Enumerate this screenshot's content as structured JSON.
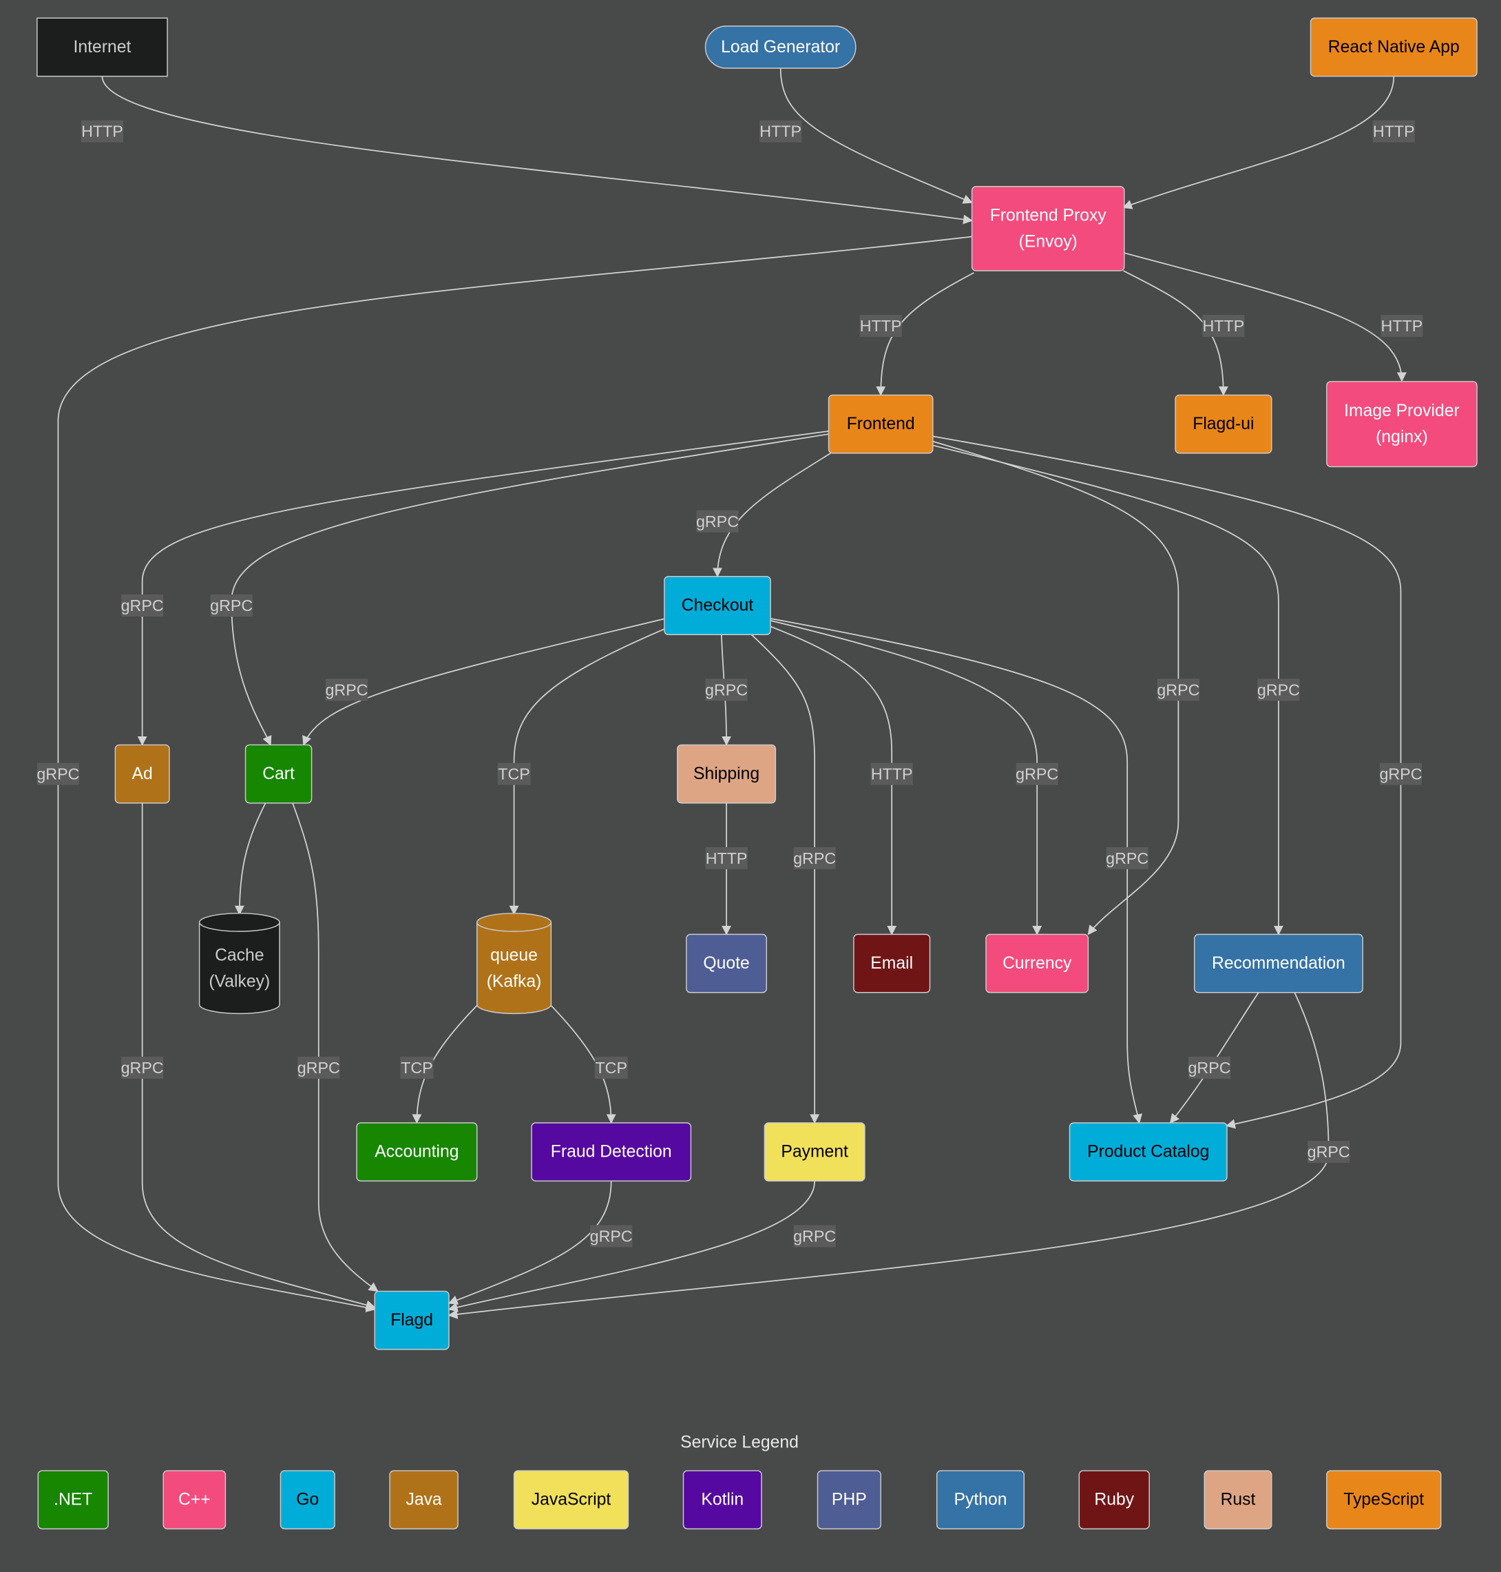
{
  "nodes": [
    {
      "id": "internet",
      "label": [
        "Internet"
      ],
      "fill": "#1c1e1e",
      "text": "#cccccc",
      "shape": "rect"
    },
    {
      "id": "loadgen",
      "label": [
        "Load Generator"
      ],
      "fill": "#3572a5",
      "text": "#ffffff",
      "shape": "stadium"
    },
    {
      "id": "rnapp",
      "label": [
        "React Native App"
      ],
      "fill": "#e8861a",
      "text": "#000000",
      "shape": "rounded"
    },
    {
      "id": "proxy",
      "label": [
        "Frontend Proxy",
        "(Envoy)"
      ],
      "fill": "#f34b7d",
      "text": "#ffffff",
      "shape": "rounded"
    },
    {
      "id": "frontend",
      "label": [
        "Frontend"
      ],
      "fill": "#e8861a",
      "text": "#000000",
      "shape": "rounded"
    },
    {
      "id": "flagdui",
      "label": [
        "Flagd-ui"
      ],
      "fill": "#e8861a",
      "text": "#000000",
      "shape": "rounded"
    },
    {
      "id": "image",
      "label": [
        "Image Provider",
        "(nginx)"
      ],
      "fill": "#f34b7d",
      "text": "#ffffff",
      "shape": "rounded"
    },
    {
      "id": "checkout",
      "label": [
        "Checkout"
      ],
      "fill": "#00add8",
      "text": "#000000",
      "shape": "rounded"
    },
    {
      "id": "ad",
      "label": [
        "Ad"
      ],
      "fill": "#b07219",
      "text": "#ffffff",
      "shape": "rounded"
    },
    {
      "id": "cart",
      "label": [
        "Cart"
      ],
      "fill": "#178600",
      "text": "#ffffff",
      "shape": "rounded"
    },
    {
      "id": "shipping",
      "label": [
        "Shipping"
      ],
      "fill": "#dea584",
      "text": "#000000",
      "shape": "rounded"
    },
    {
      "id": "cache",
      "label": [
        "Cache",
        "(Valkey)"
      ],
      "fill": "#1c1e1e",
      "text": "#cccccc",
      "shape": "cylinder"
    },
    {
      "id": "queue",
      "label": [
        "queue",
        "(Kafka)"
      ],
      "fill": "#b07219",
      "text": "#ffffff",
      "shape": "cylinder"
    },
    {
      "id": "quote",
      "label": [
        "Quote"
      ],
      "fill": "#4f5d95",
      "text": "#ffffff",
      "shape": "rounded"
    },
    {
      "id": "email",
      "label": [
        "Email"
      ],
      "fill": "#701516",
      "text": "#ffffff",
      "shape": "rounded"
    },
    {
      "id": "currency",
      "label": [
        "Currency"
      ],
      "fill": "#f34b7d",
      "text": "#ffffff",
      "shape": "rounded"
    },
    {
      "id": "recommendation",
      "label": [
        "Recommendation"
      ],
      "fill": "#3572a5",
      "text": "#ffffff",
      "shape": "rounded"
    },
    {
      "id": "accounting",
      "label": [
        "Accounting"
      ],
      "fill": "#178600",
      "text": "#ffffff",
      "shape": "rounded"
    },
    {
      "id": "fraud",
      "label": [
        "Fraud Detection"
      ],
      "fill": "#5509a0",
      "text": "#ffffff",
      "shape": "rounded"
    },
    {
      "id": "payment",
      "label": [
        "Payment"
      ],
      "fill": "#f1e05a",
      "text": "#000000",
      "shape": "rounded"
    },
    {
      "id": "productcatalog",
      "label": [
        "Product Catalog"
      ],
      "fill": "#00add8",
      "text": "#000000",
      "shape": "rounded"
    },
    {
      "id": "flagd",
      "label": [
        "Flagd"
      ],
      "fill": "#00add8",
      "text": "#000000",
      "shape": "rounded"
    }
  ],
  "edges": [
    {
      "from": "internet",
      "to": "proxy",
      "label": "HTTP"
    },
    {
      "from": "loadgen",
      "to": "proxy",
      "label": "HTTP"
    },
    {
      "from": "rnapp",
      "to": "proxy",
      "label": "HTTP"
    },
    {
      "from": "proxy",
      "to": "flagd",
      "label": "gRPC"
    },
    {
      "from": "proxy",
      "to": "frontend",
      "label": "HTTP"
    },
    {
      "from": "proxy",
      "to": "flagdui",
      "label": "HTTP"
    },
    {
      "from": "proxy",
      "to": "image",
      "label": "HTTP"
    },
    {
      "from": "frontend",
      "to": "ad",
      "label": "gRPC"
    },
    {
      "from": "frontend",
      "to": "cart",
      "label": "gRPC"
    },
    {
      "from": "frontend",
      "to": "checkout",
      "label": "gRPC"
    },
    {
      "from": "frontend",
      "to": "currency",
      "label": "gRPC"
    },
    {
      "from": "frontend",
      "to": "recommendation",
      "label": "gRPC"
    },
    {
      "from": "frontend",
      "to": "productcatalog",
      "label": "gRPC"
    },
    {
      "from": "checkout",
      "to": "cart",
      "label": "gRPC"
    },
    {
      "from": "checkout",
      "to": "queue",
      "label": "TCP"
    },
    {
      "from": "checkout",
      "to": "shipping",
      "label": "gRPC"
    },
    {
      "from": "checkout",
      "to": "payment",
      "label": "gRPC"
    },
    {
      "from": "checkout",
      "to": "email",
      "label": "HTTP"
    },
    {
      "from": "checkout",
      "to": "currency",
      "label": "gRPC"
    },
    {
      "from": "checkout",
      "to": "productcatalog",
      "label": "gRPC"
    },
    {
      "from": "ad",
      "to": "flagd",
      "label": "gRPC"
    },
    {
      "from": "cart",
      "to": "cache",
      "label": ""
    },
    {
      "from": "cart",
      "to": "flagd",
      "label": "gRPC"
    },
    {
      "from": "shipping",
      "to": "quote",
      "label": "HTTP"
    },
    {
      "from": "queue",
      "to": "accounting",
      "label": "TCP"
    },
    {
      "from": "queue",
      "to": "fraud",
      "label": "TCP"
    },
    {
      "from": "recommendation",
      "to": "productcatalog",
      "label": "gRPC"
    },
    {
      "from": "recommendation",
      "to": "flagd",
      "label": "gRPC"
    },
    {
      "from": "fraud",
      "to": "flagd",
      "label": "gRPC"
    },
    {
      "from": "payment",
      "to": "flagd",
      "label": "gRPC"
    }
  ],
  "legend": {
    "title": "Service Legend",
    "items": [
      {
        "label": ".NET",
        "fill": "#178600",
        "text": "#ffffff"
      },
      {
        "label": "C++",
        "fill": "#f34b7d",
        "text": "#ffffff"
      },
      {
        "label": "Go",
        "fill": "#00add8",
        "text": "#000000"
      },
      {
        "label": "Java",
        "fill": "#b07219",
        "text": "#ffffff"
      },
      {
        "label": "JavaScript",
        "fill": "#f1e05a",
        "text": "#000000"
      },
      {
        "label": "Kotlin",
        "fill": "#5509a0",
        "text": "#ffffff"
      },
      {
        "label": "PHP",
        "fill": "#4f5d95",
        "text": "#ffffff"
      },
      {
        "label": "Python",
        "fill": "#3572a5",
        "text": "#ffffff"
      },
      {
        "label": "Ruby",
        "fill": "#701516",
        "text": "#ffffff"
      },
      {
        "label": "Rust",
        "fill": "#dea584",
        "text": "#000000"
      },
      {
        "label": "TypeScript",
        "fill": "#e8861a",
        "text": "#000000"
      }
    ]
  }
}
